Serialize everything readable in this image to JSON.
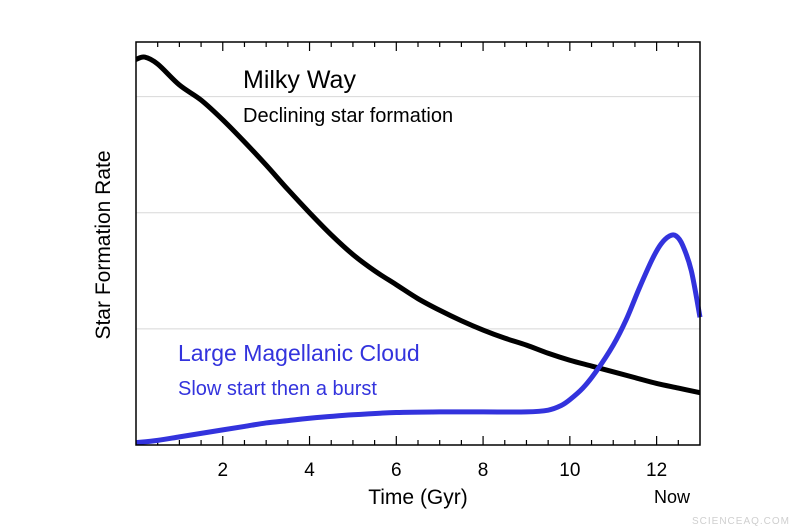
{
  "chart_data": {
    "type": "line",
    "title": "",
    "xlabel": "Time (Gyr)",
    "ylabel": "Star Formation Rate",
    "xlim": [
      0,
      13
    ],
    "ylim": [
      0,
      3.47
    ],
    "x_ticks": [
      2,
      4,
      6,
      8,
      10,
      12
    ],
    "x_tick_labels": [
      "2",
      "4",
      "6",
      "8",
      "10",
      "12"
    ],
    "x_extra_label": {
      "x": 13,
      "text": "Now"
    },
    "y_gridlines": [
      1,
      2,
      3
    ],
    "y_tick_labels_shown": false,
    "grid": "horizontal",
    "series": [
      {
        "name": "Milky Way",
        "subtitle": "Declining star formation",
        "color": "#000000",
        "x": [
          0,
          0.2,
          0.5,
          1,
          1.5,
          2,
          2.5,
          3,
          3.5,
          4,
          4.5,
          5,
          5.5,
          6,
          6.5,
          7,
          7.5,
          8,
          8.5,
          9,
          9.5,
          10,
          10.5,
          11,
          11.5,
          12,
          12.5,
          13
        ],
        "y": [
          3.32,
          3.34,
          3.28,
          3.1,
          2.97,
          2.8,
          2.61,
          2.41,
          2.2,
          2.0,
          1.81,
          1.64,
          1.5,
          1.38,
          1.26,
          1.16,
          1.07,
          0.99,
          0.92,
          0.86,
          0.79,
          0.73,
          0.68,
          0.63,
          0.58,
          0.53,
          0.49,
          0.45
        ]
      },
      {
        "name": "Large Magellanic Cloud",
        "subtitle": "Slow start then a burst",
        "color": "#3333dd",
        "x": [
          0,
          0.5,
          1,
          1.5,
          2,
          2.5,
          3,
          3.5,
          4,
          5,
          6,
          7,
          8,
          9,
          9.5,
          9.8,
          10,
          10.3,
          10.6,
          11,
          11.3,
          11.6,
          11.9,
          12.1,
          12.3,
          12.45,
          12.6,
          12.8,
          13
        ],
        "y": [
          0.02,
          0.04,
          0.07,
          0.1,
          0.13,
          0.16,
          0.19,
          0.21,
          0.23,
          0.26,
          0.28,
          0.285,
          0.285,
          0.285,
          0.3,
          0.34,
          0.39,
          0.49,
          0.63,
          0.86,
          1.08,
          1.35,
          1.6,
          1.73,
          1.8,
          1.8,
          1.72,
          1.5,
          1.1
        ]
      }
    ]
  },
  "watermark": "SCIENCEAQ.COM"
}
